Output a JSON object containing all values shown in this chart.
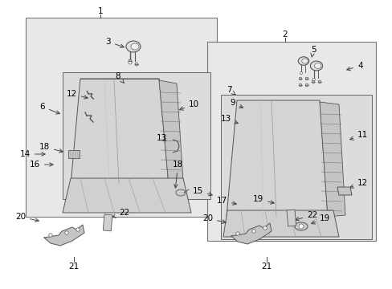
{
  "bg_color": "#ffffff",
  "box_bg": "#e8e8e8",
  "inner_bg": "#e0e0e0",
  "edge_color": "#666666",
  "text_color": "#000000",
  "line_color": "#444444",
  "figsize": [
    4.89,
    3.6
  ],
  "dpi": 100,
  "labels": {
    "1": [
      125,
      12,
      125,
      22,
      "center"
    ],
    "2": [
      355,
      42,
      355,
      52,
      "center"
    ],
    "3": [
      138,
      52,
      155,
      62,
      "right"
    ],
    "4": [
      443,
      82,
      425,
      92,
      "left"
    ],
    "5": [
      388,
      62,
      393,
      72,
      "center"
    ],
    "6": [
      60,
      132,
      83,
      138,
      "right"
    ],
    "7": [
      284,
      112,
      295,
      120,
      "center"
    ],
    "8": [
      143,
      95,
      155,
      103,
      "left"
    ],
    "9": [
      291,
      128,
      305,
      136,
      "right"
    ],
    "10": [
      233,
      132,
      218,
      138,
      "left"
    ],
    "11": [
      443,
      168,
      428,
      173,
      "left"
    ],
    "12r": [
      443,
      218,
      428,
      225,
      "left"
    ],
    "12l": [
      98,
      118,
      113,
      124,
      "right"
    ],
    "13r": [
      288,
      148,
      300,
      155,
      "right"
    ],
    "13l": [
      198,
      175,
      214,
      180,
      "left"
    ],
    "14": [
      40,
      192,
      62,
      192,
      "right"
    ],
    "15": [
      252,
      236,
      268,
      244,
      "right"
    ],
    "16": [
      52,
      202,
      72,
      202,
      "right"
    ],
    "17": [
      284,
      248,
      298,
      255,
      "right"
    ],
    "18l": [
      62,
      182,
      82,
      190,
      "right"
    ],
    "18r": [
      214,
      205,
      200,
      212,
      "left"
    ],
    "19r": [
      396,
      270,
      382,
      262,
      "left"
    ],
    "19l": [
      323,
      248,
      343,
      258,
      "right"
    ],
    "20l": [
      35,
      268,
      55,
      268,
      "right"
    ],
    "20r": [
      268,
      272,
      285,
      272,
      "right"
    ],
    "21l": [
      95,
      332,
      95,
      320,
      "center"
    ],
    "21r": [
      335,
      332,
      335,
      320,
      "center"
    ],
    "22l": [
      144,
      268,
      132,
      275,
      "left"
    ],
    "22r": [
      380,
      272,
      362,
      278,
      "left"
    ]
  }
}
